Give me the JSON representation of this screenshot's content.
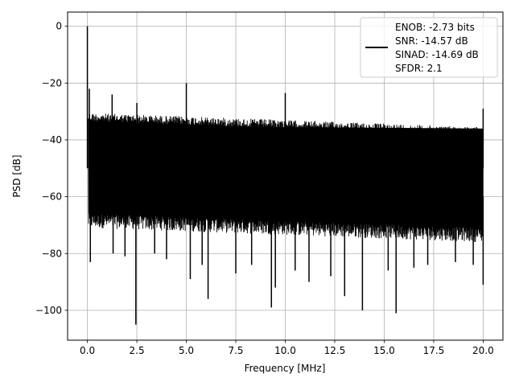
{
  "chart_data": {
    "type": "line",
    "title": "",
    "xlabel": "Frequency [MHz]",
    "ylabel": "PSD [dB]",
    "xlim": [
      -1.0,
      21.0
    ],
    "ylim": [
      -110.5,
      5.0
    ],
    "x_ticks": [
      0.0,
      2.5,
      5.0,
      7.5,
      10.0,
      12.5,
      15.0,
      17.5,
      20.0
    ],
    "x_tick_labels": [
      "0.0",
      "2.5",
      "5.0",
      "7.5",
      "10.0",
      "12.5",
      "15.0",
      "17.5",
      "20.0"
    ],
    "y_ticks": [
      0,
      -20,
      -40,
      -60,
      -80,
      -100
    ],
    "y_tick_labels": [
      "0",
      "−20",
      "−40",
      "−60",
      "−80",
      "−100"
    ],
    "grid": true,
    "legend_position": "top-right",
    "legend_entries": [
      "ENOB: -2.73 bits",
      "SNR: -14.57 dB",
      "SINAD: -14.69 dB",
      "SFDR: 2.1"
    ],
    "series": [
      {
        "color": "#000000",
        "noise_band": {
          "x_start": 0.05,
          "x_end": 20.0,
          "upper_envelope_start": -30.5,
          "upper_envelope_end": -35.5,
          "lower_envelope_start": -71.0,
          "lower_envelope_end": -76.0,
          "fill_from": -35.0,
          "fill_to": -65.0
        },
        "peaks": [
          {
            "x": 0.0,
            "y": 0.0
          },
          {
            "x": 0.1,
            "y": -22.0
          },
          {
            "x": 1.25,
            "y": -24.0
          },
          {
            "x": 2.5,
            "y": -27.0
          },
          {
            "x": 5.0,
            "y": -20.0
          },
          {
            "x": 10.0,
            "y": -23.5
          },
          {
            "x": 20.0,
            "y": -29.0
          }
        ],
        "dips": [
          {
            "x": 0.15,
            "y": -83.0
          },
          {
            "x": 1.3,
            "y": -80.0
          },
          {
            "x": 1.9,
            "y": -81.0
          },
          {
            "x": 2.45,
            "y": -105.0
          },
          {
            "x": 3.4,
            "y": -80.0
          },
          {
            "x": 4.0,
            "y": -82.0
          },
          {
            "x": 5.2,
            "y": -89.0
          },
          {
            "x": 5.8,
            "y": -84.0
          },
          {
            "x": 6.1,
            "y": -96.0
          },
          {
            "x": 7.5,
            "y": -87.0
          },
          {
            "x": 8.3,
            "y": -84.0
          },
          {
            "x": 9.3,
            "y": -99.0
          },
          {
            "x": 9.5,
            "y": -92.0
          },
          {
            "x": 10.5,
            "y": -86.0
          },
          {
            "x": 11.2,
            "y": -90.0
          },
          {
            "x": 12.3,
            "y": -88.0
          },
          {
            "x": 13.0,
            "y": -95.0
          },
          {
            "x": 13.9,
            "y": -100.0
          },
          {
            "x": 15.2,
            "y": -86.0
          },
          {
            "x": 15.6,
            "y": -101.0
          },
          {
            "x": 16.5,
            "y": -85.0
          },
          {
            "x": 17.2,
            "y": -84.0
          },
          {
            "x": 18.6,
            "y": -83.0
          },
          {
            "x": 19.5,
            "y": -84.0
          },
          {
            "x": 20.0,
            "y": -91.0
          }
        ]
      }
    ]
  }
}
